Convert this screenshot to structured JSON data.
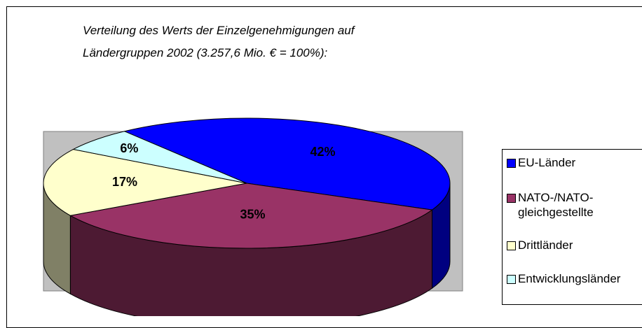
{
  "chart_data": {
    "type": "pie",
    "title": [
      "Verteilung des Werts der Einzelgenehmigungen auf",
      "Ländergruppen 2002 (3.257,6 Mio. € = 100%):"
    ],
    "categories": [
      "EU-Länder",
      "NATO-/NATO-gleichgestellte",
      "Drittländer",
      "Entwicklungsländer"
    ],
    "values": [
      42,
      35,
      17,
      6
    ],
    "value_labels": [
      "42%",
      "35%",
      "17%",
      "6%"
    ],
    "colors": [
      "#0000ff",
      "#993366",
      "#ffffcc",
      "#ccffff"
    ],
    "legend": "right"
  }
}
